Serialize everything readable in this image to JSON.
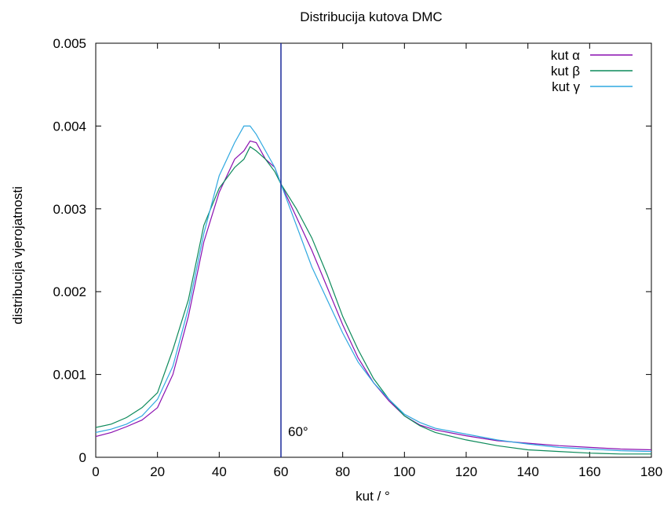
{
  "chart_data": {
    "type": "line",
    "title": "Distribucija kutova DMC",
    "xlabel": "kut / °",
    "ylabel": "distribucija vjerojatnosti",
    "xlim": [
      0,
      180
    ],
    "ylim": [
      0,
      0.005
    ],
    "x_ticks": [
      "0",
      "20",
      "40",
      "60",
      "80",
      "100",
      "120",
      "140",
      "160",
      "180"
    ],
    "y_ticks": [
      "0",
      "0.001",
      "0.002",
      "0.003",
      "0.004",
      "0.005"
    ],
    "grid": false,
    "legend_position": "top-right",
    "annotation": {
      "text": "60°",
      "x": 60,
      "y": 0.0002
    },
    "vertical_line": {
      "x": 60,
      "color": "#1a2a9a"
    },
    "series": [
      {
        "name": "kut α",
        "color": "#8a0fb0",
        "x": [
          0,
          5,
          10,
          15,
          20,
          25,
          30,
          35,
          40,
          45,
          48,
          50,
          52,
          55,
          58,
          60,
          65,
          70,
          75,
          80,
          85,
          90,
          95,
          100,
          105,
          110,
          120,
          130,
          140,
          150,
          160,
          170,
          180
        ],
        "y": [
          0.00025,
          0.0003,
          0.00037,
          0.00045,
          0.0006,
          0.001,
          0.0017,
          0.0026,
          0.0032,
          0.0036,
          0.0037,
          0.00382,
          0.0038,
          0.0036,
          0.0035,
          0.0033,
          0.0029,
          0.0025,
          0.00205,
          0.0016,
          0.0012,
          0.0009,
          0.00068,
          0.0005,
          0.00039,
          0.00033,
          0.00026,
          0.0002,
          0.00017,
          0.00014,
          0.00012,
          0.0001,
          9e-05
        ]
      },
      {
        "name": "kut β",
        "color": "#0c8a5a",
        "x": [
          0,
          5,
          10,
          15,
          20,
          25,
          30,
          35,
          40,
          45,
          48,
          50,
          52,
          55,
          58,
          60,
          65,
          70,
          75,
          80,
          85,
          90,
          95,
          100,
          105,
          110,
          120,
          130,
          140,
          150,
          160,
          170,
          180
        ],
        "y": [
          0.00036,
          0.0004,
          0.00048,
          0.0006,
          0.00078,
          0.0013,
          0.0019,
          0.0028,
          0.00325,
          0.0035,
          0.0036,
          0.00375,
          0.0037,
          0.0036,
          0.00345,
          0.0033,
          0.003,
          0.00265,
          0.0022,
          0.0017,
          0.0013,
          0.00095,
          0.0007,
          0.0005,
          0.00038,
          0.0003,
          0.00021,
          0.00014,
          9e-05,
          7e-05,
          5e-05,
          4e-05,
          4e-05
        ]
      },
      {
        "name": "kut γ",
        "color": "#2fa8e0",
        "x": [
          0,
          5,
          10,
          15,
          20,
          25,
          30,
          35,
          40,
          45,
          48,
          50,
          52,
          55,
          58,
          60,
          65,
          70,
          75,
          80,
          85,
          90,
          95,
          100,
          105,
          110,
          120,
          130,
          140,
          150,
          160,
          170,
          180
        ],
        "y": [
          0.0003,
          0.00034,
          0.0004,
          0.0005,
          0.0007,
          0.0011,
          0.0018,
          0.0027,
          0.0034,
          0.0038,
          0.004,
          0.004,
          0.0039,
          0.0037,
          0.0035,
          0.0033,
          0.0028,
          0.0023,
          0.0019,
          0.0015,
          0.00115,
          0.0009,
          0.0007,
          0.00052,
          0.00042,
          0.00035,
          0.00028,
          0.00021,
          0.00016,
          0.00012,
          0.0001,
          8e-05,
          7e-05
        ]
      }
    ]
  }
}
